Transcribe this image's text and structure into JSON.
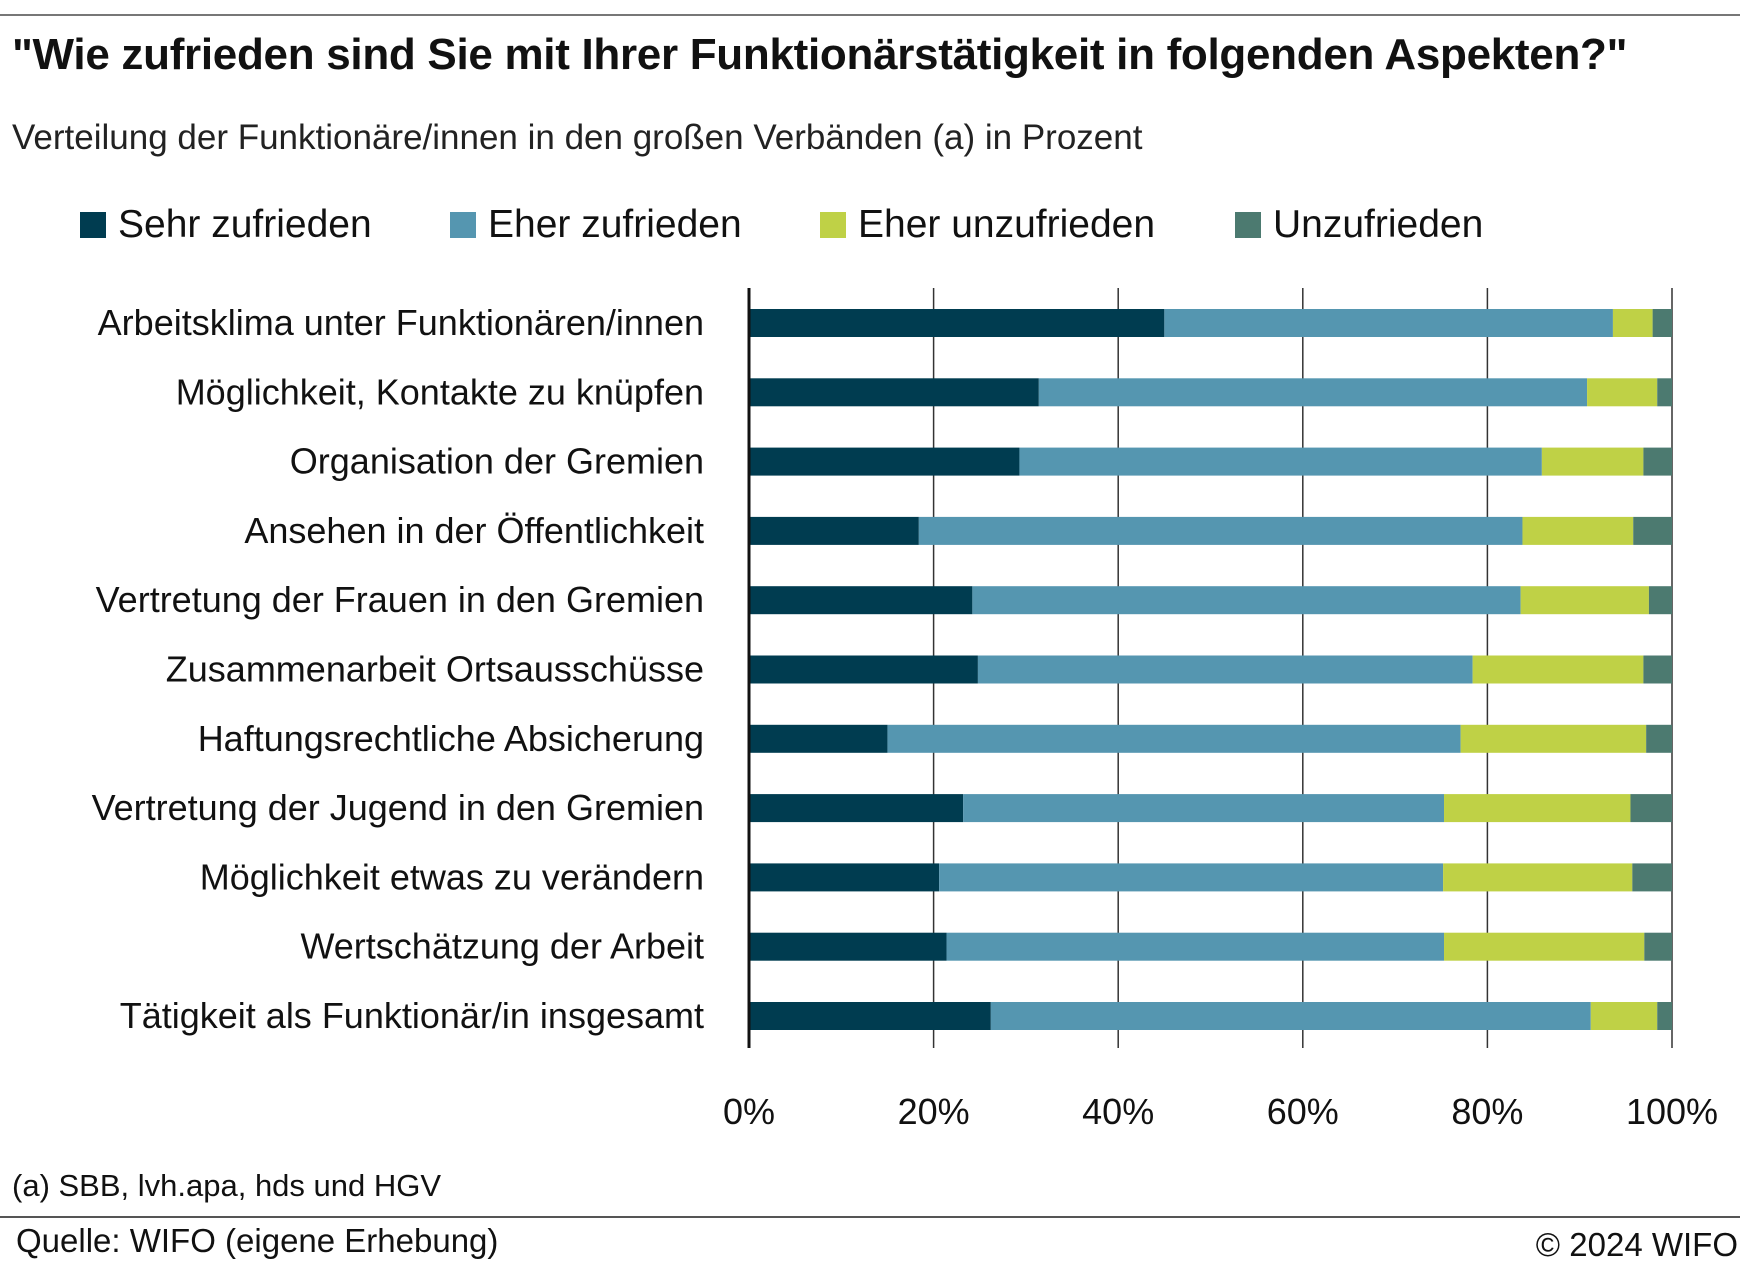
{
  "header": {
    "title": "\"Wie zufrieden sind Sie mit Ihrer Funktionärstätigkeit in folgenden Aspekten?\"",
    "subtitle": "Verteilung der Funktionäre/innen in den großen Verbänden (a) in Prozent"
  },
  "footer": {
    "footnote": "(a) SBB, lvh.apa, hds und HGV",
    "source": "Quelle: WIFO (eigene Erhebung)",
    "copyright": "© 2024 WIFO"
  },
  "colors": {
    "sehr_zufrieden": "#003c50",
    "eher_zufrieden": "#5596b0",
    "eher_unzufrieden": "#bfd146",
    "unzufrieden": "#4c7a70"
  },
  "chart_data": {
    "type": "bar",
    "orientation": "horizontal",
    "stacked": true,
    "categories": [
      "Arbeitsklima unter Funktionären/innen",
      "Möglichkeit, Kontakte zu knüpfen",
      "Organisation der Gremien",
      "Ansehen in der Öffentlichkeit",
      "Vertretung der Frauen in den Gremien",
      "Zusammenarbeit Ortsausschüsse",
      "Haftungsrechtliche Absicherung",
      "Vertretung der Jugend in den Gremien",
      "Möglichkeit etwas zu verändern",
      "Wertschätzung der Arbeit",
      "Tätigkeit als Funktionär/in insgesamt"
    ],
    "series": [
      {
        "name": "Sehr zufrieden",
        "color": "#003c50",
        "values": [
          45,
          31.4,
          29.3,
          18.4,
          24.2,
          24.8,
          15,
          23.2,
          20.6,
          21.4,
          26.2
        ]
      },
      {
        "name": "Eher zufrieden",
        "color": "#5596b0",
        "values": [
          48.6,
          59.4,
          56.6,
          65.4,
          59.4,
          53.6,
          62.1,
          52.1,
          54.6,
          53.9,
          65.0
        ]
      },
      {
        "name": "Eher unzufrieden",
        "color": "#bfd146",
        "values": [
          4.3,
          7.6,
          11.0,
          12.0,
          13.9,
          18.5,
          20.1,
          20.2,
          20.5,
          21.7,
          7.2
        ]
      },
      {
        "name": "Unzufrieden",
        "color": "#4c7a70",
        "values": [
          2.1,
          1.6,
          3.1,
          4.2,
          2.5,
          3.1,
          2.8,
          4.5,
          4.3,
          3.0,
          1.6
        ]
      }
    ],
    "xticks": [
      "0%",
      "20%",
      "40%",
      "60%",
      "80%",
      "100%"
    ],
    "xlim": [
      0,
      100
    ],
    "xlabel": "",
    "ylabel": "",
    "grid": true,
    "legend_position": "top"
  }
}
